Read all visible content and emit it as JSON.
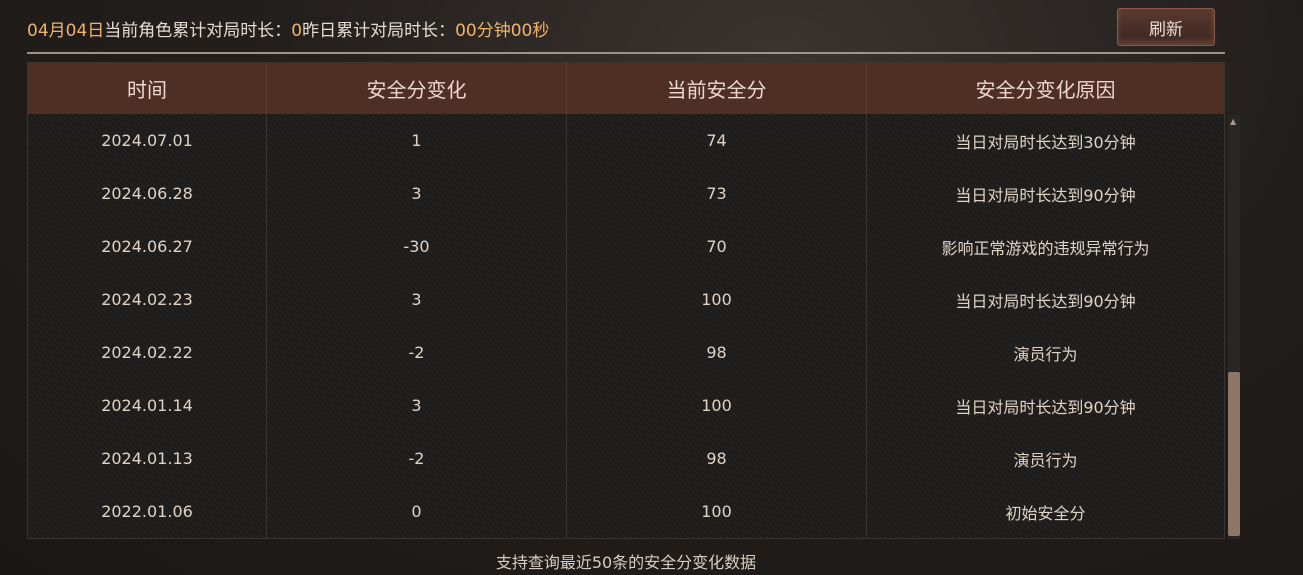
{
  "header": {
    "date": "04月04日",
    "label1": "当前角色累计对局时长：",
    "value1": "0",
    "label2": "昨日累计对局时长：",
    "value2": "00分钟00秒"
  },
  "refresh_label": "刷新",
  "table": {
    "columns": [
      "时间",
      "安全分变化",
      "当前安全分",
      "安全分变化原因"
    ],
    "rows": [
      [
        "2024.07.01",
        "1",
        "74",
        "当日对局时长达到30分钟"
      ],
      [
        "2024.06.28",
        "3",
        "73",
        "当日对局时长达到90分钟"
      ],
      [
        "2024.06.27",
        "-30",
        "70",
        "影响正常游戏的违规异常行为"
      ],
      [
        "2024.02.23",
        "3",
        "100",
        "当日对局时长达到90分钟"
      ],
      [
        "2024.02.22",
        "-2",
        "98",
        "演员行为"
      ],
      [
        "2024.01.14",
        "3",
        "100",
        "当日对局时长达到90分钟"
      ],
      [
        "2024.01.13",
        "-2",
        "98",
        "演员行为"
      ],
      [
        "2022.01.06",
        "0",
        "100",
        "初始安全分"
      ]
    ]
  },
  "footer": "支持查询最近50条的安全分变化数据"
}
